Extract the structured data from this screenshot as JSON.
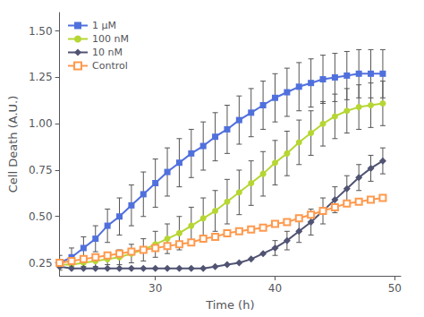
{
  "chart_data": {
    "type": "line",
    "xlabel": "Time (h)",
    "ylabel": "Cell Death (A.U.)",
    "x": [
      22,
      23,
      24,
      25,
      26,
      27,
      28,
      29,
      30,
      31,
      32,
      33,
      34,
      35,
      36,
      37,
      38,
      39,
      40,
      41,
      42,
      43,
      44,
      45,
      46,
      47,
      48,
      49
    ],
    "series": [
      {
        "name": "1 μM",
        "marker": "square",
        "values": [
          0.25,
          0.28,
          0.33,
          0.38,
          0.45,
          0.5,
          0.56,
          0.62,
          0.68,
          0.74,
          0.79,
          0.84,
          0.88,
          0.93,
          0.97,
          1.02,
          1.06,
          1.1,
          1.14,
          1.17,
          1.2,
          1.22,
          1.24,
          1.25,
          1.26,
          1.27,
          1.27,
          1.27
        ],
        "errors": [
          0.04,
          0.05,
          0.06,
          0.07,
          0.09,
          0.1,
          0.11,
          0.12,
          0.13,
          0.13,
          0.13,
          0.13,
          0.13,
          0.13,
          0.13,
          0.13,
          0.13,
          0.13,
          0.13,
          0.13,
          0.13,
          0.13,
          0.13,
          0.13,
          0.13,
          0.13,
          0.13,
          0.13
        ]
      },
      {
        "name": "100 nM",
        "marker": "circle",
        "values": [
          0.24,
          0.24,
          0.25,
          0.26,
          0.27,
          0.28,
          0.3,
          0.32,
          0.35,
          0.38,
          0.41,
          0.45,
          0.49,
          0.53,
          0.58,
          0.63,
          0.68,
          0.73,
          0.79,
          0.84,
          0.9,
          0.95,
          1.0,
          1.04,
          1.07,
          1.09,
          1.1,
          1.11
        ],
        "errors": [
          0.02,
          0.02,
          0.02,
          0.03,
          0.03,
          0.04,
          0.05,
          0.06,
          0.07,
          0.08,
          0.09,
          0.1,
          0.11,
          0.11,
          0.12,
          0.12,
          0.12,
          0.12,
          0.12,
          0.12,
          0.12,
          0.12,
          0.12,
          0.12,
          0.12,
          0.12,
          0.12,
          0.12
        ]
      },
      {
        "name": "10 nM",
        "marker": "diamond",
        "values": [
          0.23,
          0.22,
          0.22,
          0.22,
          0.22,
          0.22,
          0.22,
          0.22,
          0.22,
          0.22,
          0.22,
          0.22,
          0.22,
          0.23,
          0.24,
          0.25,
          0.27,
          0.3,
          0.33,
          0.37,
          0.42,
          0.47,
          0.53,
          0.59,
          0.65,
          0.71,
          0.76,
          0.8
        ],
        "errors": [
          0.0,
          0.0,
          0.0,
          0.0,
          0.0,
          0.0,
          0.0,
          0.0,
          0.0,
          0.0,
          0.0,
          0.0,
          0.0,
          0.0,
          0.0,
          0.0,
          0.0,
          0.0,
          0.04,
          0.05,
          0.06,
          0.07,
          0.07,
          0.07,
          0.07,
          0.07,
          0.07,
          0.07
        ]
      },
      {
        "name": "Control",
        "marker": "open square",
        "values": [
          0.25,
          0.26,
          0.27,
          0.28,
          0.29,
          0.3,
          0.31,
          0.32,
          0.33,
          0.34,
          0.35,
          0.36,
          0.38,
          0.39,
          0.41,
          0.42,
          0.43,
          0.44,
          0.46,
          0.47,
          0.49,
          0.51,
          0.53,
          0.55,
          0.57,
          0.58,
          0.59,
          0.6
        ],
        "errors": [
          0.0,
          0.0,
          0.0,
          0.0,
          0.0,
          0.0,
          0.0,
          0.0,
          0.0,
          0.0,
          0.0,
          0.0,
          0.0,
          0.0,
          0.0,
          0.0,
          0.0,
          0.0,
          0.0,
          0.0,
          0.0,
          0.0,
          0.0,
          0.0,
          0.0,
          0.0,
          0.0,
          0.0
        ]
      }
    ],
    "xlim": [
      22,
      50.5
    ],
    "ylim": [
      0.18,
      1.6
    ],
    "xticks": [
      30,
      40,
      50
    ],
    "yticks": [
      0.25,
      {
        "value": 0.5,
        "label": "0.50"
      },
      0.75,
      {
        "value": 1,
        "label": "1.00"
      },
      1.25,
      {
        "value": 1.5,
        "label": "1.50"
      }
    ],
    "grid": false,
    "legend": "upper left",
    "annotations": [
      {
        "text": "*",
        "x": 50.6,
        "y": 1.27
      },
      {
        "text": "*",
        "x": 50.6,
        "y": 1.1
      },
      {
        "text": "*",
        "x": 50.6,
        "y": 0.8
      }
    ]
  }
}
